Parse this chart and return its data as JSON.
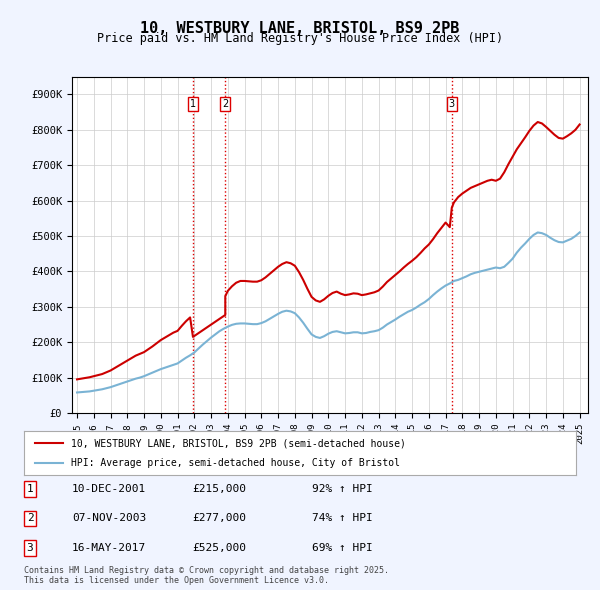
{
  "title": "10, WESTBURY LANE, BRISTOL, BS9 2PB",
  "subtitle": "Price paid vs. HM Land Registry's House Price Index (HPI)",
  "xlim_years": [
    1995,
    2025.5
  ],
  "ylim": [
    0,
    950000
  ],
  "yticks": [
    0,
    100000,
    200000,
    300000,
    400000,
    500000,
    600000,
    700000,
    800000,
    900000
  ],
  "ytick_labels": [
    "£0",
    "£100K",
    "£200K",
    "£300K",
    "£400K",
    "£500K",
    "£600K",
    "£700K",
    "£800K",
    "£900K"
  ],
  "xtick_years": [
    1995,
    1996,
    1997,
    1998,
    1999,
    2000,
    2001,
    2002,
    2003,
    2004,
    2005,
    2006,
    2007,
    2008,
    2009,
    2010,
    2011,
    2012,
    2013,
    2014,
    2015,
    2016,
    2017,
    2018,
    2019,
    2020,
    2021,
    2022,
    2023,
    2024,
    2025
  ],
  "sale_dates_num": [
    2001.92,
    2003.85,
    2017.37
  ],
  "sale_prices": [
    215000,
    277000,
    525000
  ],
  "sale_labels": [
    "1",
    "2",
    "3"
  ],
  "vline_color": "#dd0000",
  "vline_style": ":",
  "hpi_line_color": "#7ab3d4",
  "price_line_color": "#cc0000",
  "background_color": "#f0f4ff",
  "plot_bg_color": "#ffffff",
  "legend_entries": [
    "10, WESTBURY LANE, BRISTOL, BS9 2PB (semi-detached house)",
    "HPI: Average price, semi-detached house, City of Bristol"
  ],
  "table_data": [
    [
      "1",
      "10-DEC-2001",
      "£215,000",
      "92% ↑ HPI"
    ],
    [
      "2",
      "07-NOV-2003",
      "£277,000",
      "74% ↑ HPI"
    ],
    [
      "3",
      "16-MAY-2017",
      "£525,000",
      "69% ↑ HPI"
    ]
  ],
  "footer_text": "Contains HM Land Registry data © Crown copyright and database right 2025.\nThis data is licensed under the Open Government Licence v3.0.",
  "hpi_data_x": [
    1995.0,
    1995.25,
    1995.5,
    1995.75,
    1996.0,
    1996.25,
    1996.5,
    1996.75,
    1997.0,
    1997.25,
    1997.5,
    1997.75,
    1998.0,
    1998.25,
    1998.5,
    1998.75,
    1999.0,
    1999.25,
    1999.5,
    1999.75,
    2000.0,
    2000.25,
    2000.5,
    2000.75,
    2001.0,
    2001.25,
    2001.5,
    2001.75,
    2002.0,
    2002.25,
    2002.5,
    2002.75,
    2003.0,
    2003.25,
    2003.5,
    2003.75,
    2004.0,
    2004.25,
    2004.5,
    2004.75,
    2005.0,
    2005.25,
    2005.5,
    2005.75,
    2006.0,
    2006.25,
    2006.5,
    2006.75,
    2007.0,
    2007.25,
    2007.5,
    2007.75,
    2008.0,
    2008.25,
    2008.5,
    2008.75,
    2009.0,
    2009.25,
    2009.5,
    2009.75,
    2010.0,
    2010.25,
    2010.5,
    2010.75,
    2011.0,
    2011.25,
    2011.5,
    2011.75,
    2012.0,
    2012.25,
    2012.5,
    2012.75,
    2013.0,
    2013.25,
    2013.5,
    2013.75,
    2014.0,
    2014.25,
    2014.5,
    2014.75,
    2015.0,
    2015.25,
    2015.5,
    2015.75,
    2016.0,
    2016.25,
    2016.5,
    2016.75,
    2017.0,
    2017.25,
    2017.5,
    2017.75,
    2018.0,
    2018.25,
    2018.5,
    2018.75,
    2019.0,
    2019.25,
    2019.5,
    2019.75,
    2020.0,
    2020.25,
    2020.5,
    2020.75,
    2021.0,
    2021.25,
    2021.5,
    2021.75,
    2022.0,
    2022.25,
    2022.5,
    2022.75,
    2023.0,
    2023.25,
    2023.5,
    2023.75,
    2024.0,
    2024.25,
    2024.5,
    2024.75,
    2025.0
  ],
  "hpi_data_y": [
    58000,
    59000,
    60000,
    61000,
    63000,
    65000,
    67000,
    70000,
    73000,
    77000,
    81000,
    85000,
    89000,
    93000,
    97000,
    100000,
    104000,
    109000,
    114000,
    119000,
    124000,
    128000,
    132000,
    136000,
    140000,
    148000,
    156000,
    163000,
    171000,
    182000,
    193000,
    203000,
    213000,
    222000,
    231000,
    238000,
    244000,
    249000,
    252000,
    253000,
    253000,
    252000,
    251000,
    251000,
    254000,
    259000,
    266000,
    273000,
    280000,
    286000,
    289000,
    287000,
    282000,
    270000,
    255000,
    238000,
    222000,
    215000,
    212000,
    217000,
    224000,
    229000,
    231000,
    228000,
    225000,
    226000,
    228000,
    228000,
    225000,
    226000,
    229000,
    231000,
    234000,
    241000,
    250000,
    257000,
    264000,
    272000,
    279000,
    286000,
    291000,
    298000,
    306000,
    313000,
    322000,
    333000,
    343000,
    352000,
    360000,
    366000,
    373000,
    376000,
    381000,
    386000,
    392000,
    396000,
    399000,
    402000,
    405000,
    408000,
    411000,
    409000,
    413000,
    424000,
    436000,
    453000,
    467000,
    479000,
    492000,
    503000,
    510000,
    508000,
    503000,
    495000,
    488000,
    483000,
    482000,
    487000,
    492000,
    500000,
    510000
  ],
  "price_data_x": [
    1995.0,
    1995.25,
    1995.5,
    1995.75,
    1996.0,
    1996.25,
    1996.5,
    1996.75,
    1997.0,
    1997.25,
    1997.5,
    1997.75,
    1998.0,
    1998.25,
    1998.5,
    1998.75,
    1999.0,
    1999.25,
    1999.5,
    1999.75,
    2000.0,
    2000.25,
    2000.5,
    2000.75,
    2001.0,
    2001.25,
    2001.5,
    2001.75,
    2001.92,
    2003.85,
    2003.85,
    2004.0,
    2004.25,
    2004.5,
    2004.75,
    2005.0,
    2005.25,
    2005.5,
    2005.75,
    2006.0,
    2006.25,
    2006.5,
    2006.75,
    2007.0,
    2007.25,
    2007.5,
    2007.75,
    2008.0,
    2008.25,
    2008.5,
    2008.75,
    2009.0,
    2009.25,
    2009.5,
    2009.75,
    2010.0,
    2010.25,
    2010.5,
    2010.75,
    2011.0,
    2011.25,
    2011.5,
    2011.75,
    2012.0,
    2012.25,
    2012.5,
    2012.75,
    2013.0,
    2013.25,
    2013.5,
    2013.75,
    2014.0,
    2014.25,
    2014.5,
    2014.75,
    2015.0,
    2015.25,
    2015.5,
    2015.75,
    2016.0,
    2016.25,
    2016.5,
    2016.75,
    2017.0,
    2017.25,
    2017.37,
    2017.5,
    2017.75,
    2018.0,
    2018.25,
    2018.5,
    2018.75,
    2019.0,
    2019.25,
    2019.5,
    2019.75,
    2020.0,
    2020.25,
    2020.5,
    2020.75,
    2021.0,
    2021.25,
    2021.5,
    2021.75,
    2022.0,
    2022.25,
    2022.5,
    2022.75,
    2023.0,
    2023.25,
    2023.5,
    2023.75,
    2024.0,
    2024.25,
    2024.5,
    2024.75,
    2025.0
  ],
  "price_data_y": [
    95000,
    97000,
    99000,
    101000,
    104000,
    107000,
    110000,
    115000,
    120000,
    127000,
    134000,
    141000,
    148000,
    155000,
    162000,
    167000,
    172000,
    180000,
    188000,
    197000,
    206000,
    213000,
    220000,
    227000,
    232000,
    246000,
    259000,
    270000,
    215000,
    277000,
    330000,
    345000,
    358000,
    368000,
    373000,
    373000,
    372000,
    371000,
    371000,
    375000,
    383000,
    393000,
    403000,
    413000,
    421000,
    426000,
    423000,
    416000,
    398000,
    376000,
    351000,
    328000,
    318000,
    314000,
    321000,
    331000,
    339000,
    343000,
    337000,
    333000,
    335000,
    338000,
    337000,
    333000,
    335000,
    338000,
    341000,
    346000,
    357000,
    370000,
    380000,
    390000,
    400000,
    411000,
    421000,
    430000,
    440000,
    452000,
    465000,
    476000,
    491000,
    508000,
    523000,
    538000,
    525000,
    580000,
    595000,
    610000,
    620000,
    628000,
    636000,
    641000,
    646000,
    651000,
    656000,
    659000,
    656000,
    662000,
    680000,
    703000,
    724000,
    745000,
    762000,
    779000,
    797000,
    812000,
    822000,
    818000,
    808000,
    797000,
    786000,
    777000,
    775000,
    782000,
    790000,
    800000,
    815000
  ]
}
